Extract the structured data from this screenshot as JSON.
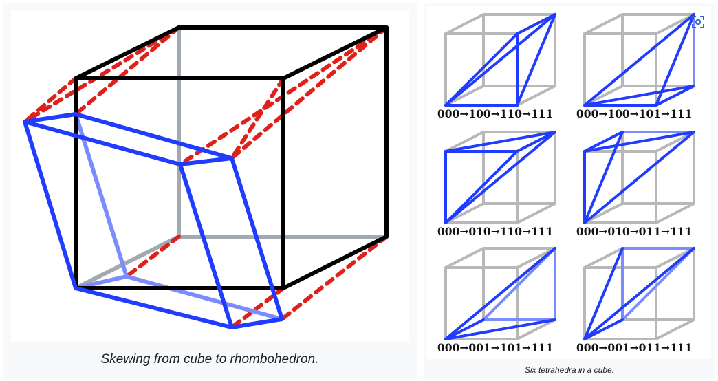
{
  "left_figure": {
    "caption": "Skewing from cube to rhombohedron."
  },
  "right_figure": {
    "caption": "Six tetrahedra in a cube.",
    "expand_icon": "expand-icon",
    "tetrahedra": [
      {
        "label": "000→100→110→111"
      },
      {
        "label": "000→100→101→111"
      },
      {
        "label": "000→010→110→111"
      },
      {
        "label": "000→010→011→111"
      },
      {
        "label": "000→001→101→111"
      },
      {
        "label": "000→001→011→111"
      }
    ]
  },
  "colors": {
    "cube_edge": "#000000",
    "cube_hidden_edge": "#a2a9b1",
    "rhombohedron_edge": "#1f3cff",
    "rhombohedron_hidden_edge": "#7b8cff",
    "skew_guide": "#e0201b",
    "grey_cube": "#b8b8b8"
  }
}
